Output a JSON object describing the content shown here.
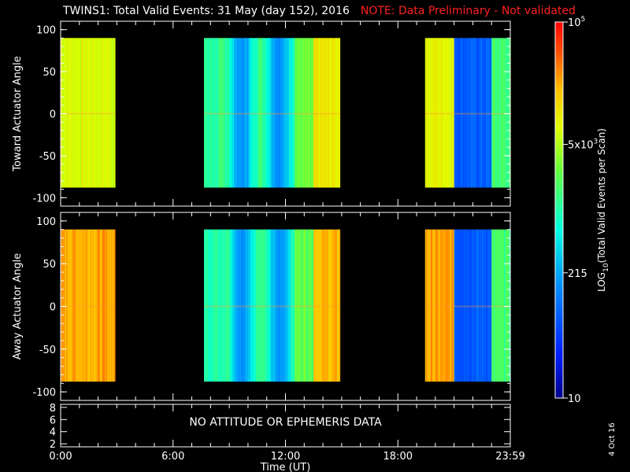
{
  "title": "TWINS1: Total Valid Events: 31 May (day 152), 2016",
  "note": "NOTE: Data Preliminary - Not validated",
  "date_stamp": "4 Oct 16",
  "no_data_text": "NO ATTITUDE OR EPHEMERIS DATA",
  "colors": {
    "background": "#000000",
    "axis": "#ffffff",
    "note": "#ff2020"
  },
  "chart_data": [
    {
      "type": "heatmap",
      "name": "toward-panel",
      "ylabel": "Toward Actuator Angle",
      "ylim": [
        -110,
        110
      ],
      "yticks": [
        "100",
        "50",
        "0",
        "-50",
        "-100"
      ],
      "xlim": [
        0,
        24
      ],
      "x_ticks": [
        "0:00",
        "6:00",
        "12:00",
        "18:00",
        "23:59"
      ],
      "data_intervals_hours": [
        [
          0,
          2.9
        ],
        [
          7.65,
          14.9
        ],
        [
          19.45,
          24
        ]
      ],
      "angle_range": [
        -88,
        90
      ]
    },
    {
      "type": "heatmap",
      "name": "away-panel",
      "ylabel": "Away Actuator Angle",
      "ylim": [
        -110,
        110
      ],
      "yticks": [
        "100",
        "50",
        "0",
        "-50",
        "-100"
      ],
      "xlim": [
        0,
        24
      ],
      "x_ticks": [
        "0:00",
        "6:00",
        "12:00",
        "18:00",
        "23:59"
      ],
      "data_intervals_hours": [
        [
          0,
          2.9
        ],
        [
          7.65,
          14.9
        ],
        [
          19.45,
          24
        ]
      ],
      "angle_range": [
        -88,
        90
      ]
    },
    {
      "type": "line",
      "name": "ephemeris-panel",
      "yticks": [
        "8",
        "6",
        "4",
        "2"
      ],
      "xlabel": "Time (UT)",
      "x_ticks": [
        "0:00",
        "6:00",
        "12:00",
        "18:00",
        "23:59"
      ]
    }
  ],
  "colorbar": {
    "label_prefix": "LOG",
    "label_sub": "10",
    "label_rest": "(Total Valid Events per Scan)",
    "ticks": [
      {
        "label": "10",
        "value": 10
      },
      {
        "label": "215",
        "value": 215
      },
      {
        "label": "5x10",
        "sup": "3",
        "value": 5000
      },
      {
        "label": "10",
        "sup": "5",
        "value": 100000
      }
    ],
    "range": [
      10,
      100000
    ]
  }
}
